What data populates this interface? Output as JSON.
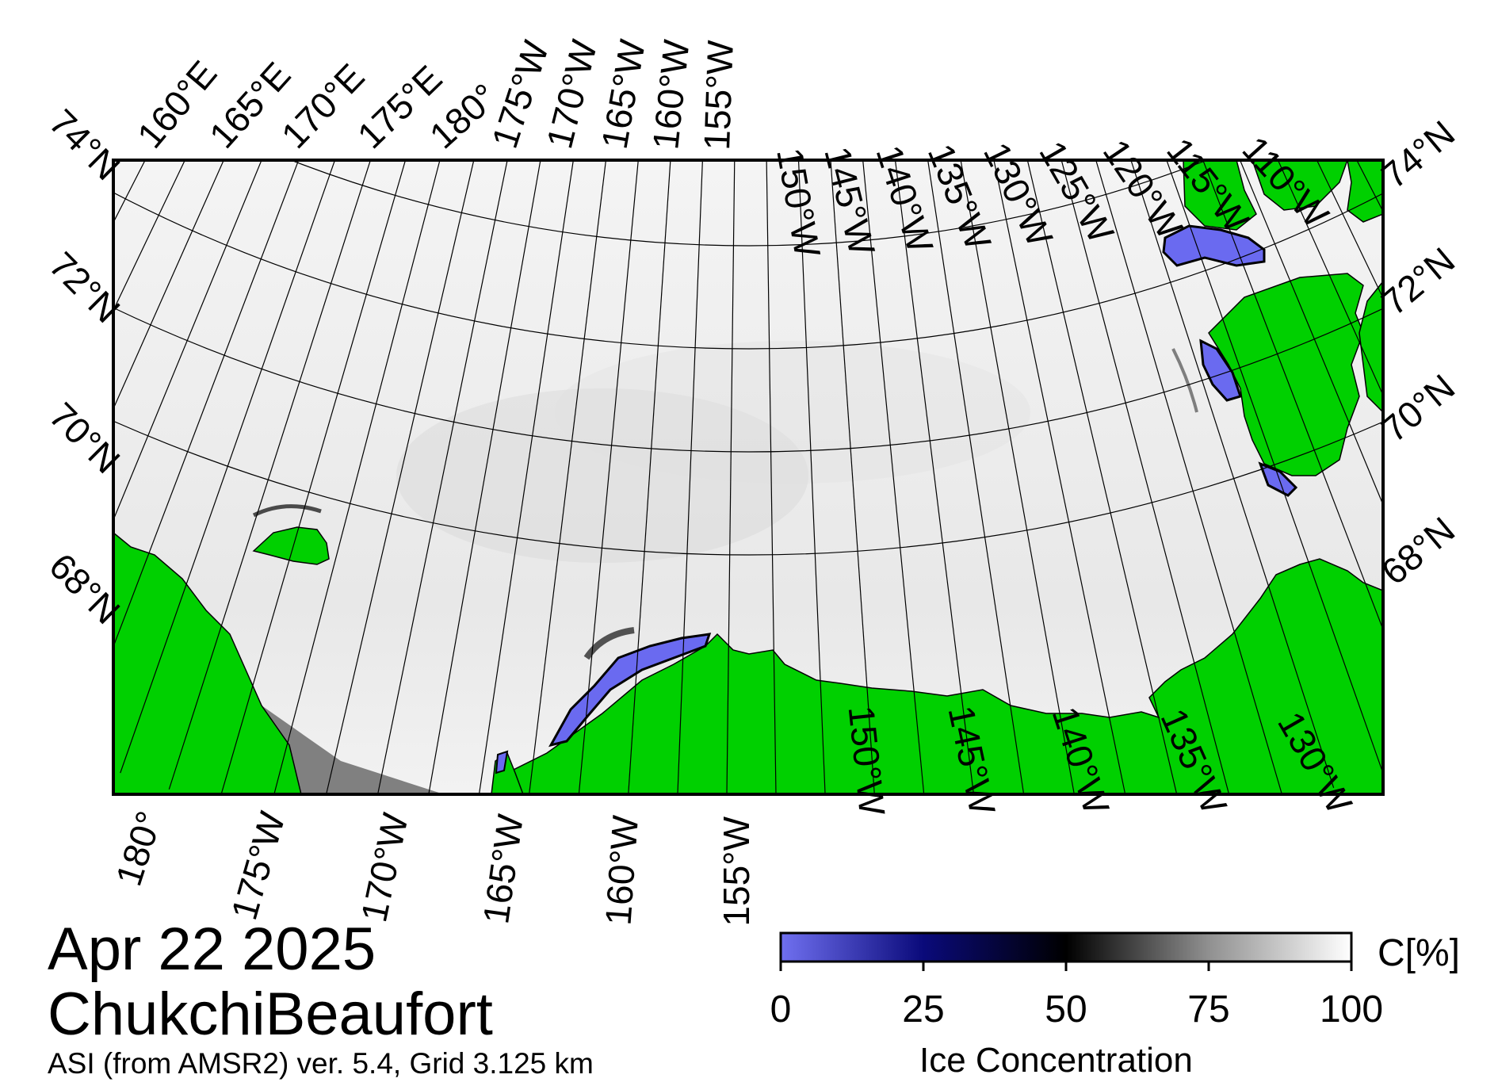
{
  "map": {
    "title_date": "Apr 22 2025",
    "title_region": "ChukchiBeaufort",
    "credit": "ASI (from AMSR2) ver. 5.4,  Grid 3.125 km",
    "top_lon_labels": [
      "160°E",
      "165°E",
      "170°E",
      "175°E",
      "180°",
      "175°W",
      "170°W",
      "165°W",
      "160°W",
      "155°W",
      "150°W",
      "145°W",
      "140°W",
      "135°W",
      "130°W",
      "125°W",
      "120°W",
      "115°W",
      "110°W"
    ],
    "bottom_lon_labels": [
      "180°",
      "175°W",
      "170°W",
      "165°W",
      "160°W",
      "155°W",
      "150°W",
      "145°W",
      "140°W",
      "135°W",
      "130°W"
    ],
    "left_lat_labels": [
      "74°N",
      "72°N",
      "70°N",
      "68°N"
    ],
    "right_lat_labels": [
      "74°N",
      "72°N",
      "70°N",
      "68°N"
    ],
    "colors": {
      "land": "#00d000",
      "no_data": "#808080",
      "ice_high": "#ffffff",
      "ice_low": "#6a6af0",
      "graticule": "#000000"
    }
  },
  "colorbar": {
    "title": "Ice Concentration",
    "unit": "C[%]",
    "ticks": [
      "0",
      "25",
      "50",
      "75",
      "100"
    ],
    "tick_values": [
      0,
      25,
      50,
      75,
      100
    ],
    "range": [
      0,
      100
    ],
    "stops": [
      {
        "value": 0,
        "color": "#7070f0"
      },
      {
        "value": 25,
        "color": "#0a0a7a"
      },
      {
        "value": 50,
        "color": "#000000"
      },
      {
        "value": 75,
        "color": "#909090"
      },
      {
        "value": 100,
        "color": "#ffffff"
      }
    ]
  }
}
